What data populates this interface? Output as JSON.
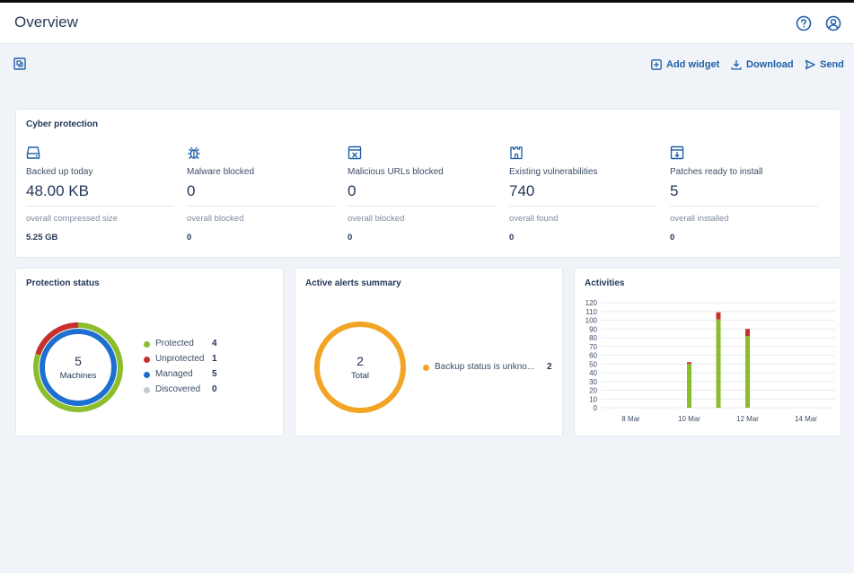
{
  "header": {
    "title": "Overview",
    "help_icon": "help-circle-icon",
    "account_icon": "user-circle-icon"
  },
  "toolbar": {
    "layout_icon": "dashboard-layout-icon",
    "add_widget": "Add widget",
    "download": "Download",
    "send": "Send"
  },
  "cyber_protection": {
    "title": "Cyber protection",
    "metrics": [
      {
        "icon": "backup-drive-icon",
        "label": "Backed up today",
        "value": "48.00 KB",
        "sub_label": "overall compressed size",
        "sub_value": "5.25 GB"
      },
      {
        "icon": "bug-icon",
        "label": "Malware blocked",
        "value": "0",
        "sub_label": "overall blocked",
        "sub_value": "0"
      },
      {
        "icon": "browser-window-icon",
        "label": "Malicious URLs blocked",
        "value": "0",
        "sub_label": "overall blocked",
        "sub_value": "0"
      },
      {
        "icon": "castle-icon",
        "label": "Existing vulnerabilities",
        "value": "740",
        "sub_label": "overall found",
        "sub_value": "0"
      },
      {
        "icon": "patch-download-icon",
        "label": "Patches ready to install",
        "value": "5",
        "sub_label": "overall installed",
        "sub_value": "0"
      }
    ]
  },
  "protection_status": {
    "title": "Protection status",
    "center_value": "5",
    "center_label": "Machines",
    "legend": [
      {
        "label": "Protected",
        "value": "4",
        "color": "#8bbd2c"
      },
      {
        "label": "Unprotected",
        "value": "1",
        "color": "#c8302e"
      },
      {
        "label": "Managed",
        "value": "5",
        "color": "#1e6fd0"
      },
      {
        "label": "Discovered",
        "value": "0",
        "color": "#c4c9d1"
      }
    ]
  },
  "alerts_summary": {
    "title": "Active alerts summary",
    "center_value": "2",
    "center_label": "Total",
    "legend": [
      {
        "label": "Backup status is unkno...",
        "value": "2",
        "color": "#f2a424"
      }
    ]
  },
  "activities": {
    "title": "Activities",
    "colors": {
      "success": "#8bbd2c",
      "failed": "#c8302e"
    }
  },
  "chart_data": {
    "type": "bar",
    "title": "Activities",
    "x_ticks": [
      "8 Mar",
      "10 Mar",
      "12 Mar",
      "14 Mar"
    ],
    "y_ticks": [
      0,
      10,
      20,
      30,
      40,
      50,
      60,
      70,
      80,
      90,
      100,
      110,
      120
    ],
    "ylim": [
      0,
      120
    ],
    "xlim": [
      "7 Mar",
      "15 Mar"
    ],
    "categories": [
      "10 Mar",
      "11 Mar",
      "12 Mar"
    ],
    "series": [
      {
        "values": [
          50,
          101,
          82
        ],
        "color": "#8bbd2c"
      },
      {
        "values": [
          2,
          8,
          8
        ],
        "color": "#c8302e"
      }
    ],
    "stacked": true
  }
}
